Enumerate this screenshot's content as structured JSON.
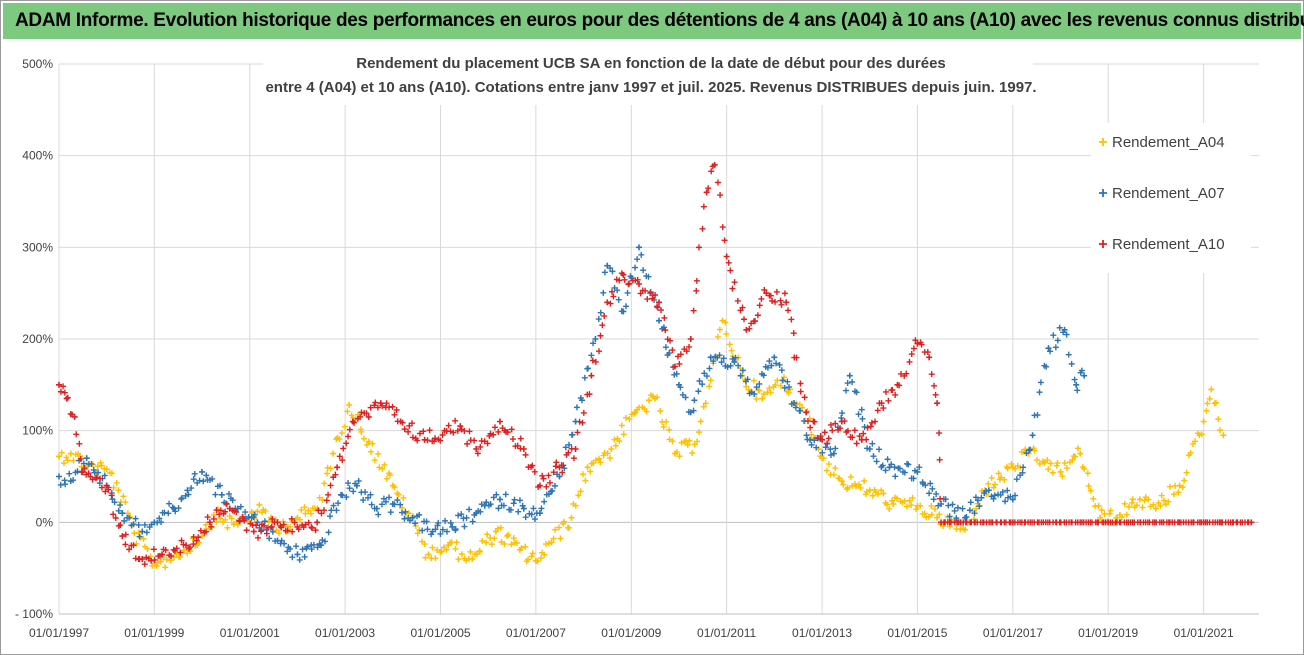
{
  "banner": {
    "text": "ADAM Informe. Evolution historique des performances en euros pour des détentions de 4 ans (A04) à 10 ans (A10) avec les revenus connus distribués"
  },
  "colors": {
    "banner_bg": "#7dc97f",
    "A04": "#ffc000",
    "A07": "#2e75b6",
    "A10": "#e02020"
  },
  "chart_data": {
    "type": "scatter",
    "title_lines": [
      "Rendement du placement UCB SA en fonction de la date de début pour des durées",
      "entre 4 (A04) et 10 ans (A10).  Cotations entre janv 1997 et juil. 2025. Revenus DISTRIBUES depuis juin. 1997."
    ],
    "xlabel": "",
    "ylabel": "",
    "x_axis": {
      "type": "date",
      "range": [
        "1997-01-01",
        "2022-03-01"
      ],
      "ticks": [
        "01/01/1997",
        "01/01/1999",
        "01/01/2001",
        "01/01/2003",
        "01/01/2005",
        "01/01/2007",
        "01/01/2009",
        "01/01/2011",
        "01/01/2013",
        "01/01/2015",
        "01/01/2017",
        "01/01/2019",
        "01/01/2021"
      ]
    },
    "y_axis": {
      "unit": "%",
      "range": [
        -100,
        500
      ],
      "ticks": [
        -100,
        0,
        100,
        200,
        300,
        400,
        500
      ],
      "tick_labels": [
        "- 100%",
        "0%",
        "100%",
        "200%",
        "300%",
        "400%",
        "500%"
      ]
    },
    "grid": true,
    "legend_position": "right",
    "marker": "plus",
    "series": [
      {
        "name": "Rendement_A04",
        "points": [
          [
            "1997-01-01",
            72
          ],
          [
            "1997-04-01",
            75
          ],
          [
            "1997-08-01",
            62
          ],
          [
            "1998-01-01",
            58
          ],
          [
            "1998-04-01",
            35
          ],
          [
            "1998-08-01",
            -12
          ],
          [
            "1999-01-01",
            -45
          ],
          [
            "1999-06-01",
            -38
          ],
          [
            "2000-01-01",
            -15
          ],
          [
            "2000-04-01",
            8
          ],
          [
            "2000-09-01",
            -2
          ],
          [
            "2001-03-01",
            12
          ],
          [
            "2001-09-01",
            -5
          ],
          [
            "2002-01-01",
            5
          ],
          [
            "2002-06-01",
            15
          ],
          [
            "2002-10-01",
            75
          ],
          [
            "2003-02-01",
            128
          ],
          [
            "2003-07-01",
            88
          ],
          [
            "2004-01-01",
            40
          ],
          [
            "2004-05-01",
            10
          ],
          [
            "2004-10-01",
            -35
          ],
          [
            "2005-03-01",
            -25
          ],
          [
            "2005-09-01",
            -40
          ],
          [
            "2006-03-01",
            -10
          ],
          [
            "2006-09-01",
            -30
          ],
          [
            "2007-01-01",
            -42
          ],
          [
            "2007-05-01",
            -22
          ],
          [
            "2007-10-01",
            5
          ],
          [
            "2008-02-01",
            60
          ],
          [
            "2008-08-01",
            80
          ],
          [
            "2009-02-01",
            120
          ],
          [
            "2009-07-01",
            135
          ],
          [
            "2009-12-01",
            75
          ],
          [
            "2010-05-01",
            85
          ],
          [
            "2010-09-01",
            155
          ],
          [
            "2010-12-01",
            220
          ],
          [
            "2011-05-01",
            160
          ],
          [
            "2011-10-01",
            135
          ],
          [
            "2012-03-01",
            155
          ],
          [
            "2012-08-01",
            125
          ],
          [
            "2013-01-01",
            70
          ],
          [
            "2013-06-01",
            45
          ],
          [
            "2014-01-01",
            35
          ],
          [
            "2014-07-01",
            20
          ],
          [
            "2015-01-01",
            18
          ],
          [
            "2015-06-01",
            5
          ],
          [
            "2016-01-01",
            -8
          ],
          [
            "2016-06-01",
            35
          ],
          [
            "2017-01-01",
            60
          ],
          [
            "2017-05-01",
            75
          ],
          [
            "2017-09-01",
            65
          ],
          [
            "2018-01-01",
            55
          ],
          [
            "2018-06-01",
            75
          ],
          [
            "2018-11-01",
            5
          ],
          [
            "2019-04-01",
            8
          ],
          [
            "2019-09-01",
            25
          ],
          [
            "2020-01-01",
            15
          ],
          [
            "2020-07-01",
            40
          ],
          [
            "2021-01-01",
            110
          ],
          [
            "2021-03-01",
            145
          ],
          [
            "2021-06-01",
            95
          ]
        ]
      },
      {
        "name": "Rendement_A07",
        "points": [
          [
            "1997-01-01",
            50
          ],
          [
            "1997-04-01",
            45
          ],
          [
            "1997-08-01",
            70
          ],
          [
            "1998-01-01",
            40
          ],
          [
            "1998-05-01",
            10
          ],
          [
            "1998-10-01",
            -10
          ],
          [
            "1999-01-01",
            0
          ],
          [
            "1999-06-01",
            15
          ],
          [
            "2000-01-01",
            55
          ],
          [
            "2000-06-01",
            30
          ],
          [
            "2000-10-01",
            15
          ],
          [
            "2001-03-01",
            0
          ],
          [
            "2001-08-01",
            -20
          ],
          [
            "2002-01-01",
            -35
          ],
          [
            "2002-07-01",
            -25
          ],
          [
            "2002-12-01",
            30
          ],
          [
            "2003-04-01",
            40
          ],
          [
            "2003-09-01",
            15
          ],
          [
            "2004-01-01",
            20
          ],
          [
            "2004-06-01",
            5
          ],
          [
            "2004-11-01",
            -10
          ],
          [
            "2005-04-01",
            -5
          ],
          [
            "2005-10-01",
            10
          ],
          [
            "2006-04-01",
            25
          ],
          [
            "2006-10-01",
            15
          ],
          [
            "2007-02-01",
            10
          ],
          [
            "2007-07-01",
            50
          ],
          [
            "2007-11-01",
            110
          ],
          [
            "2008-04-01",
            200
          ],
          [
            "2008-07-01",
            280
          ],
          [
            "2008-11-01",
            230
          ],
          [
            "2009-03-01",
            300
          ],
          [
            "2009-08-01",
            220
          ],
          [
            "2010-01-01",
            150
          ],
          [
            "2010-04-01",
            120
          ],
          [
            "2010-09-01",
            180
          ],
          [
            "2011-03-01",
            175
          ],
          [
            "2011-08-01",
            140
          ],
          [
            "2012-01-01",
            180
          ],
          [
            "2012-06-01",
            130
          ],
          [
            "2012-10-01",
            90
          ],
          [
            "2013-04-01",
            75
          ],
          [
            "2013-08-01",
            160
          ],
          [
            "2014-01-01",
            80
          ],
          [
            "2014-06-01",
            60
          ],
          [
            "2015-01-01",
            55
          ],
          [
            "2015-07-01",
            20
          ],
          [
            "2016-01-01",
            5
          ],
          [
            "2016-07-01",
            35
          ],
          [
            "2017-01-01",
            25
          ],
          [
            "2017-06-01",
            95
          ],
          [
            "2017-10-01",
            190
          ],
          [
            "2018-02-01",
            210
          ],
          [
            "2018-05-01",
            150
          ],
          [
            "2018-07-01",
            160
          ]
        ]
      },
      {
        "name": "Rendement_A10",
        "points": [
          [
            "1997-01-01",
            150
          ],
          [
            "1997-03-01",
            135
          ],
          [
            "1997-05-01",
            115
          ],
          [
            "1997-07-01",
            55
          ],
          [
            "1998-01-01",
            40
          ],
          [
            "1998-05-01",
            -15
          ],
          [
            "1998-10-01",
            -40
          ],
          [
            "1999-03-01",
            -35
          ],
          [
            "1999-09-01",
            -25
          ],
          [
            "2000-03-01",
            0
          ],
          [
            "2000-08-01",
            15
          ],
          [
            "2001-02-01",
            -10
          ],
          [
            "2001-08-01",
            0
          ],
          [
            "2002-01-01",
            -5
          ],
          [
            "2002-06-01",
            0
          ],
          [
            "2002-11-01",
            60
          ],
          [
            "2003-03-01",
            110
          ],
          [
            "2003-07-01",
            115
          ],
          [
            "2003-10-01",
            130
          ],
          [
            "2004-03-01",
            110
          ],
          [
            "2004-09-01",
            90
          ],
          [
            "2005-02-01",
            100
          ],
          [
            "2005-06-01",
            105
          ],
          [
            "2005-10-01",
            80
          ],
          [
            "2006-04-01",
            110
          ],
          [
            "2006-10-01",
            80
          ],
          [
            "2007-02-01",
            40
          ],
          [
            "2007-07-01",
            60
          ],
          [
            "2007-11-01",
            80
          ],
          [
            "2008-03-01",
            160
          ],
          [
            "2008-07-01",
            240
          ],
          [
            "2008-11-01",
            270
          ],
          [
            "2009-03-01",
            260
          ],
          [
            "2009-08-01",
            240
          ],
          [
            "2009-12-01",
            170
          ],
          [
            "2010-04-01",
            200
          ],
          [
            "2010-08-01",
            360
          ],
          [
            "2010-10-01",
            390
          ],
          [
            "2011-01-01",
            290
          ],
          [
            "2011-06-01",
            210
          ],
          [
            "2011-11-01",
            250
          ],
          [
            "2012-04-01",
            240
          ],
          [
            "2012-09-01",
            120
          ],
          [
            "2013-01-01",
            90
          ],
          [
            "2013-06-01",
            110
          ],
          [
            "2013-11-01",
            90
          ],
          [
            "2014-04-01",
            130
          ],
          [
            "2014-08-01",
            150
          ],
          [
            "2015-01-01",
            195
          ],
          [
            "2015-04-01",
            180
          ],
          [
            "2015-06-01",
            130
          ],
          [
            "2015-07-01",
            0
          ],
          [
            "2017-01-01",
            0
          ],
          [
            "2019-01-01",
            0
          ],
          [
            "2021-01-01",
            0
          ],
          [
            "2022-01-01",
            0
          ]
        ]
      }
    ]
  }
}
